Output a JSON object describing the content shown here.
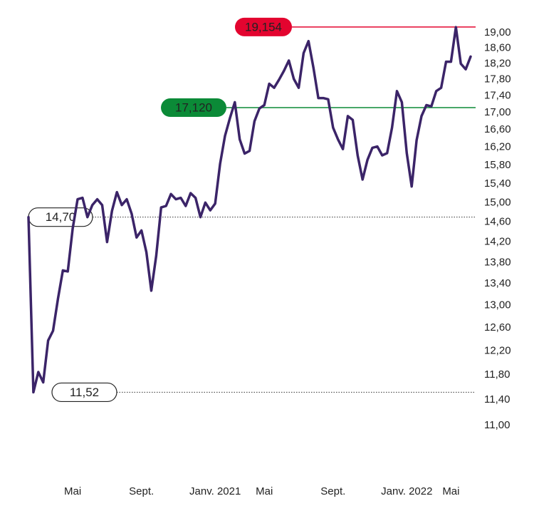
{
  "chart_data": {
    "type": "line",
    "log_y": true,
    "categories": [
      null,
      null,
      null,
      null,
      null,
      null,
      null,
      null,
      null,
      "Mai",
      null,
      null,
      null,
      null,
      null,
      null,
      null,
      null,
      null,
      null,
      null,
      null,
      null,
      "Sept.",
      null,
      null,
      null,
      null,
      null,
      null,
      null,
      null,
      null,
      null,
      null,
      null,
      null,
      null,
      "Janv. 2021",
      null,
      null,
      null,
      null,
      null,
      null,
      null,
      null,
      null,
      "Mai",
      null,
      null,
      null,
      null,
      null,
      null,
      null,
      null,
      null,
      null,
      null,
      null,
      null,
      "Sept.",
      null,
      null,
      null,
      null,
      null,
      null,
      null,
      null,
      null,
      null,
      null,
      null,
      null,
      null,
      "Janv. 2022",
      null,
      null,
      null,
      null,
      null,
      null,
      null,
      null,
      "Mai",
      null,
      null,
      null,
      null
    ],
    "series": [
      {
        "color": "#3b2468",
        "values": [
          14.7,
          11.52,
          11.85,
          11.68,
          12.38,
          12.55,
          13.12,
          13.65,
          13.63,
          14.47,
          15.07,
          15.1,
          14.7,
          14.95,
          15.07,
          14.95,
          14.2,
          14.83,
          15.22,
          14.95,
          15.07,
          14.77,
          14.29,
          14.43,
          14.0,
          13.27,
          13.93,
          14.9,
          14.93,
          15.18,
          15.07,
          15.1,
          14.93,
          15.2,
          15.1,
          14.7,
          15.0,
          14.84,
          14.98,
          15.83,
          16.46,
          16.87,
          17.25,
          16.38,
          16.06,
          16.12,
          16.8,
          17.1,
          17.18,
          17.7,
          17.6,
          17.8,
          18.02,
          18.28,
          17.82,
          17.6,
          18.47,
          18.78,
          18.1,
          17.35,
          17.35,
          17.32,
          16.65,
          16.38,
          16.16,
          16.92,
          16.83,
          16.02,
          15.49,
          15.92,
          16.19,
          16.22,
          16.02,
          16.07,
          16.65,
          17.52,
          17.25,
          16.07,
          15.34,
          16.36,
          16.92,
          17.18,
          17.15,
          17.52,
          17.6,
          18.25,
          18.25,
          19.15,
          18.2,
          18.06,
          18.38
        ]
      }
    ],
    "ylim": [
      11,
      19
    ],
    "yticks": [
      {
        "value": 19,
        "label": "19,00"
      },
      {
        "value": 18.6,
        "label": "18,60"
      },
      {
        "value": 18.2,
        "label": "18,20"
      },
      {
        "value": 17.8,
        "label": "17,80"
      },
      {
        "value": 17.4,
        "label": "17,40"
      },
      {
        "value": 17,
        "label": "17,00"
      },
      {
        "value": 16.6,
        "label": "16,60"
      },
      {
        "value": 16.2,
        "label": "16,20"
      },
      {
        "value": 15.8,
        "label": "15,80"
      },
      {
        "value": 15.4,
        "label": "15,40"
      },
      {
        "value": 15,
        "label": "15,00"
      },
      {
        "value": 14.6,
        "label": "14,60"
      },
      {
        "value": 14.2,
        "label": "14,20"
      },
      {
        "value": 13.8,
        "label": "13,80"
      },
      {
        "value": 13.4,
        "label": "13,40"
      },
      {
        "value": 13,
        "label": "13,00"
      },
      {
        "value": 12.6,
        "label": "12,60"
      },
      {
        "value": 12.2,
        "label": "12,20"
      },
      {
        "value": 11.8,
        "label": "11,80"
      },
      {
        "value": 11.4,
        "label": "11,40"
      },
      {
        "value": 11,
        "label": "11,00"
      }
    ],
    "annotations": [
      {
        "value": 19.154,
        "label": "19,154",
        "color": "#e3042f",
        "style": "solid"
      },
      {
        "value": 17.12,
        "label": "17,120",
        "color": "#0b8a37",
        "style": "solid"
      },
      {
        "value": 14.7,
        "label": "14,70",
        "color": "#555555",
        "style": "dotted"
      },
      {
        "value": 11.52,
        "label": "11,52",
        "color": "#555555",
        "style": "dotted"
      }
    ]
  }
}
